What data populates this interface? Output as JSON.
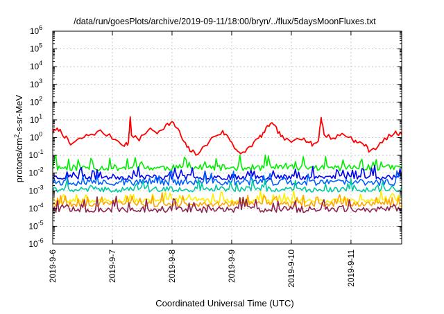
{
  "chart_data": {
    "type": "line",
    "title": "/data/run/goesPlots/archive/2019-09-11/18:00/bryn/../flux/5daysMoonFluxes.txt",
    "xlabel": "Coordinated Universal Time (UTC)",
    "ylabel_parts": [
      "protons/cm",
      "2",
      "-s-sr-MeV"
    ],
    "yscale": "log",
    "ylim_exp": [
      -6,
      6
    ],
    "xlim_days": [
      0,
      5.85
    ],
    "x_tick_labels": [
      "2019-9-6",
      "2019-9-7",
      "2019-9-8",
      "2019-9-9",
      "2019-9-10",
      "2019-9-11"
    ],
    "grid": true,
    "series": [
      {
        "color": "#ff0000",
        "points": [
          [
            0,
            2
          ],
          [
            0.1,
            3
          ],
          [
            0.2,
            1.2
          ],
          [
            0.3,
            0.4
          ],
          [
            0.45,
            0.8
          ],
          [
            0.6,
            1.4
          ],
          [
            0.8,
            2.2
          ],
          [
            1.0,
            1.0
          ],
          [
            1.2,
            0.4
          ],
          [
            1.27,
            0.5
          ],
          [
            1.3,
            16
          ],
          [
            1.32,
            1.5
          ],
          [
            1.45,
            0.7
          ],
          [
            1.6,
            3
          ],
          [
            1.75,
            2
          ],
          [
            1.9,
            5
          ],
          [
            2.0,
            7
          ],
          [
            2.1,
            3
          ],
          [
            2.2,
            0.5
          ],
          [
            2.3,
            0.2
          ],
          [
            2.4,
            0.12
          ],
          [
            2.55,
            0.3
          ],
          [
            2.7,
            1.2
          ],
          [
            2.85,
            2
          ],
          [
            2.95,
            1.0
          ],
          [
            3.05,
            0.3
          ],
          [
            3.15,
            0.1
          ],
          [
            3.3,
            0.3
          ],
          [
            3.45,
            0.9
          ],
          [
            3.55,
            2
          ],
          [
            3.65,
            7
          ],
          [
            3.75,
            3
          ],
          [
            3.85,
            1.0
          ],
          [
            4.0,
            0.5
          ],
          [
            4.1,
            1.2
          ],
          [
            4.25,
            0.7
          ],
          [
            4.35,
            0.4
          ],
          [
            4.45,
            0.6
          ],
          [
            4.5,
            14
          ],
          [
            4.55,
            1.5
          ],
          [
            4.7,
            0.9
          ],
          [
            4.85,
            1.6
          ],
          [
            5.0,
            1.0
          ],
          [
            5.1,
            0.5
          ],
          [
            5.2,
            0.5
          ],
          [
            5.3,
            0.2
          ],
          [
            5.45,
            0.3
          ],
          [
            5.6,
            1.0
          ],
          [
            5.75,
            1.8
          ],
          [
            5.85,
            1.5
          ]
        ]
      },
      {
        "color": "#00ee00",
        "base": 0.02,
        "spread": 0.35,
        "seed": 11
      },
      {
        "color": "#0000ee",
        "base": 0.006,
        "spread": 0.3,
        "seed": 23
      },
      {
        "color": "#0060ff",
        "base": 0.003,
        "spread": 0.35,
        "seed": 37
      },
      {
        "color": "#00c8a0",
        "base": 0.0012,
        "spread": 0.3,
        "seed": 41
      },
      {
        "color": "#ffee00",
        "base": 0.00028,
        "spread": 0.25,
        "seed": 53
      },
      {
        "color": "#ffa500",
        "base": 0.00018,
        "spread": 0.3,
        "seed": 67
      },
      {
        "color": "#8b2252",
        "base": 9e-05,
        "spread": 0.35,
        "seed": 79
      }
    ]
  }
}
